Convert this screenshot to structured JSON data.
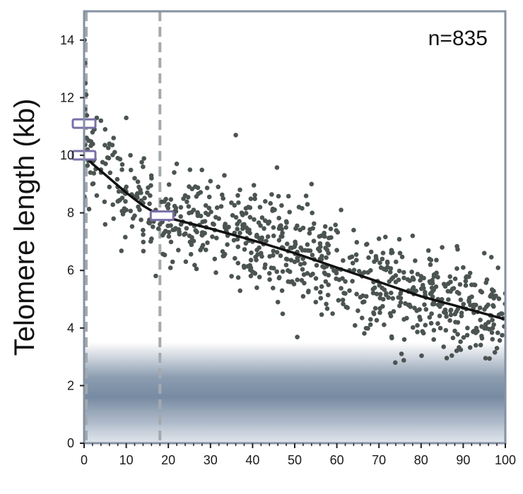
{
  "chart_data": {
    "type": "scatter",
    "title": "",
    "xlabel": "",
    "ylabel": "Telomere length (kb)",
    "annotation": "n=835",
    "xlim": [
      0,
      100
    ],
    "ylim": [
      0,
      15
    ],
    "x_ticks": [
      0,
      10,
      20,
      30,
      40,
      50,
      60,
      70,
      80,
      90,
      100
    ],
    "y_ticks": [
      0,
      2,
      4,
      6,
      8,
      10,
      12,
      14
    ],
    "x_tick_labels": [
      "0",
      "10",
      "20",
      "30",
      "40",
      "50",
      "60",
      "70",
      "80",
      "90",
      "100"
    ],
    "y_tick_labels": [
      "0",
      "2",
      "4",
      "6",
      "8",
      "10",
      "12",
      "14"
    ],
    "grid": false,
    "sample_size": 835,
    "scatter_sample": [
      [
        0.1,
        14.0
      ],
      [
        0.2,
        13.2
      ],
      [
        0.3,
        12.5
      ],
      [
        0.5,
        12.1
      ],
      [
        0.2,
        11.6
      ],
      [
        0.4,
        11.0
      ],
      [
        0.6,
        10.6
      ],
      [
        0.8,
        10.2
      ],
      [
        1,
        9.8
      ],
      [
        1.5,
        9.4
      ],
      [
        2,
        10.8
      ],
      [
        3,
        11.3
      ],
      [
        4,
        11.2
      ],
      [
        5,
        10.9
      ],
      [
        6,
        10.4
      ],
      [
        7,
        10.6
      ],
      [
        8,
        9.9
      ],
      [
        9,
        9.5
      ],
      [
        10,
        11.3
      ],
      [
        11,
        10.0
      ],
      [
        12,
        9.2
      ],
      [
        13,
        8.9
      ],
      [
        14,
        9.6
      ],
      [
        15,
        8.7
      ],
      [
        16,
        9.2
      ],
      [
        17,
        8.1
      ],
      [
        18,
        7.6
      ],
      [
        19,
        7.3
      ],
      [
        2,
        9.0
      ],
      [
        3,
        8.6
      ],
      [
        4,
        9.5
      ],
      [
        6,
        8.9
      ],
      [
        8,
        8.4
      ],
      [
        10,
        8.1
      ],
      [
        12,
        7.9
      ],
      [
        14,
        7.4
      ],
      [
        16,
        7.1
      ],
      [
        5,
        7.6
      ],
      [
        7,
        7.8
      ],
      [
        20,
        8.3
      ],
      [
        21,
        6.3
      ],
      [
        22,
        9.7
      ],
      [
        24,
        8.6
      ],
      [
        25,
        7.2
      ],
      [
        26,
        8.1
      ],
      [
        28,
        6.8
      ],
      [
        29,
        7.5
      ],
      [
        30,
        9.1
      ],
      [
        31,
        6.4
      ],
      [
        32,
        7.8
      ],
      [
        33,
        8.5
      ],
      [
        34,
        6.9
      ],
      [
        35,
        5.8
      ],
      [
        36,
        10.7
      ],
      [
        37,
        7.3
      ],
      [
        38,
        6.1
      ],
      [
        39,
        8.2
      ],
      [
        40,
        7.0
      ],
      [
        41,
        5.4
      ],
      [
        42,
        6.6
      ],
      [
        43,
        8.4
      ],
      [
        44,
        5.9
      ],
      [
        45,
        7.2
      ],
      [
        46,
        4.9
      ],
      [
        47,
        6.8
      ],
      [
        48,
        7.7
      ],
      [
        49,
        5.6
      ],
      [
        50,
        6.3
      ],
      [
        51,
        8.2
      ],
      [
        52,
        5.1
      ],
      [
        53,
        6.9
      ],
      [
        54,
        9.0
      ],
      [
        55,
        4.9
      ],
      [
        56,
        6.4
      ],
      [
        57,
        7.3
      ],
      [
        58,
        5.5
      ],
      [
        59,
        4.5
      ],
      [
        60,
        6.7
      ],
      [
        61,
        8.1
      ],
      [
        62,
        5.2
      ],
      [
        63,
        6.0
      ],
      [
        64,
        7.4
      ],
      [
        65,
        4.6
      ],
      [
        66,
        5.8
      ],
      [
        67,
        6.9
      ],
      [
        68,
        4.3
      ],
      [
        69,
        5.4
      ],
      [
        70,
        7.1
      ],
      [
        71,
        5.0
      ],
      [
        72,
        6.3
      ],
      [
        73,
        3.7
      ],
      [
        74,
        5.6
      ],
      [
        75,
        6.6
      ],
      [
        76,
        3.6
      ],
      [
        77,
        5.3
      ],
      [
        78,
        7.2
      ],
      [
        79,
        4.6
      ],
      [
        80,
        5.8
      ],
      [
        81,
        4.1
      ],
      [
        82,
        6.4
      ],
      [
        83,
        3.6
      ],
      [
        84,
        5.0
      ],
      [
        85,
        6.8
      ],
      [
        86,
        4.4
      ],
      [
        87,
        5.6
      ],
      [
        88,
        3.9
      ],
      [
        89,
        5.2
      ],
      [
        90,
        6.1
      ],
      [
        91,
        4.0
      ],
      [
        92,
        5.5
      ],
      [
        93,
        3.4
      ],
      [
        94,
        4.7
      ],
      [
        95,
        6.6
      ],
      [
        96,
        4.2
      ],
      [
        97,
        5.3
      ],
      [
        98,
        3.3
      ],
      [
        99,
        4.5
      ],
      [
        100,
        5.2
      ],
      [
        23,
        7.6
      ],
      [
        27,
        7.9
      ],
      [
        33,
        6.5
      ],
      [
        37,
        8.8
      ],
      [
        43,
        6.2
      ],
      [
        47,
        5.3
      ],
      [
        53,
        5.9
      ],
      [
        57,
        6.1
      ],
      [
        63,
        5.3
      ],
      [
        67,
        5.1
      ],
      [
        73,
        5.7
      ],
      [
        77,
        4.8
      ],
      [
        83,
        4.9
      ],
      [
        87,
        4.6
      ],
      [
        93,
        4.8
      ],
      [
        97,
        4.0
      ],
      [
        38,
        7.6
      ],
      [
        48,
        6.4
      ],
      [
        58,
        6.6
      ],
      [
        68,
        6.0
      ]
    ],
    "fit_line": {
      "x": [
        0,
        2,
        6,
        10,
        14,
        18,
        30,
        40,
        50,
        60,
        70,
        80,
        90,
        100
      ],
      "y": [
        10.0,
        9.7,
        9.2,
        8.7,
        8.25,
        7.9,
        7.45,
        7.05,
        6.6,
        6.1,
        5.6,
        5.1,
        4.7,
        4.3
      ]
    },
    "age_markers": [
      {
        "x": 0,
        "y": 11.1
      },
      {
        "x": 0,
        "y": 10.0
      },
      {
        "x": 18,
        "y": 7.9
      }
    ],
    "vertical_lines": [
      0,
      18
    ],
    "shaded_band": {
      "ymin": 0,
      "ymax": 3.5,
      "peak_y": 2.2
    }
  }
}
